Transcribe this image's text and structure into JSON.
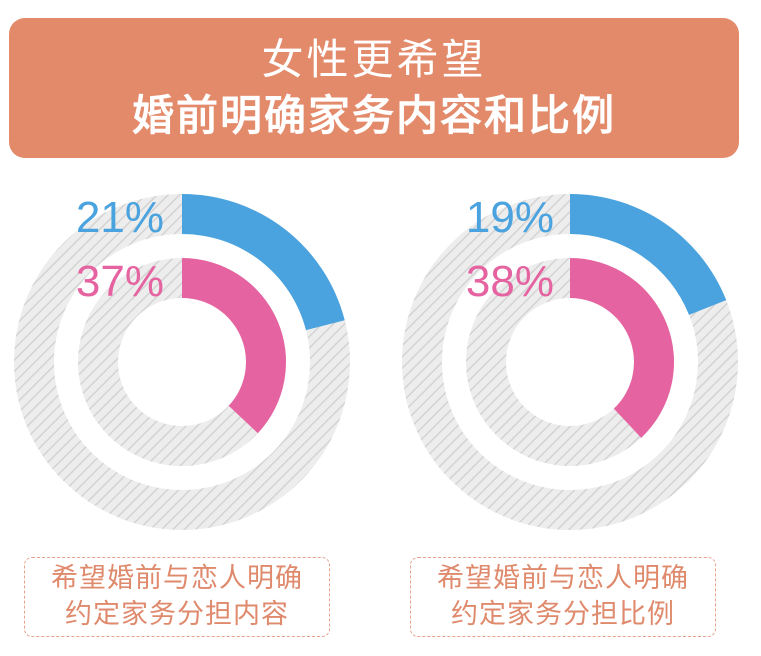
{
  "header": {
    "line1": "女性更希望",
    "line2": "婚前明确家务内容和比例"
  },
  "colors": {
    "banner": "#e38a6b",
    "outer_ring": "#4aa3de",
    "inner_ring": "#e563a0",
    "track": "#d8d8d8",
    "caption_text": "#df8a6c"
  },
  "chart_data": [
    {
      "type": "pie",
      "variant": "concentric-donut",
      "series": [
        {
          "value": 21,
          "label": "21%",
          "color": "#4aa3de"
        },
        {
          "value": 37,
          "label": "37%",
          "color": "#e563a0"
        }
      ],
      "caption": [
        "希望婚前与恋人明确",
        "约定家务分担内容"
      ]
    },
    {
      "type": "pie",
      "variant": "concentric-donut",
      "series": [
        {
          "value": 19,
          "label": "19%",
          "color": "#4aa3de"
        },
        {
          "value": 38,
          "label": "38%",
          "color": "#e563a0"
        }
      ],
      "caption": [
        "希望婚前与恋人明确",
        "约定家务分担比例"
      ]
    }
  ]
}
